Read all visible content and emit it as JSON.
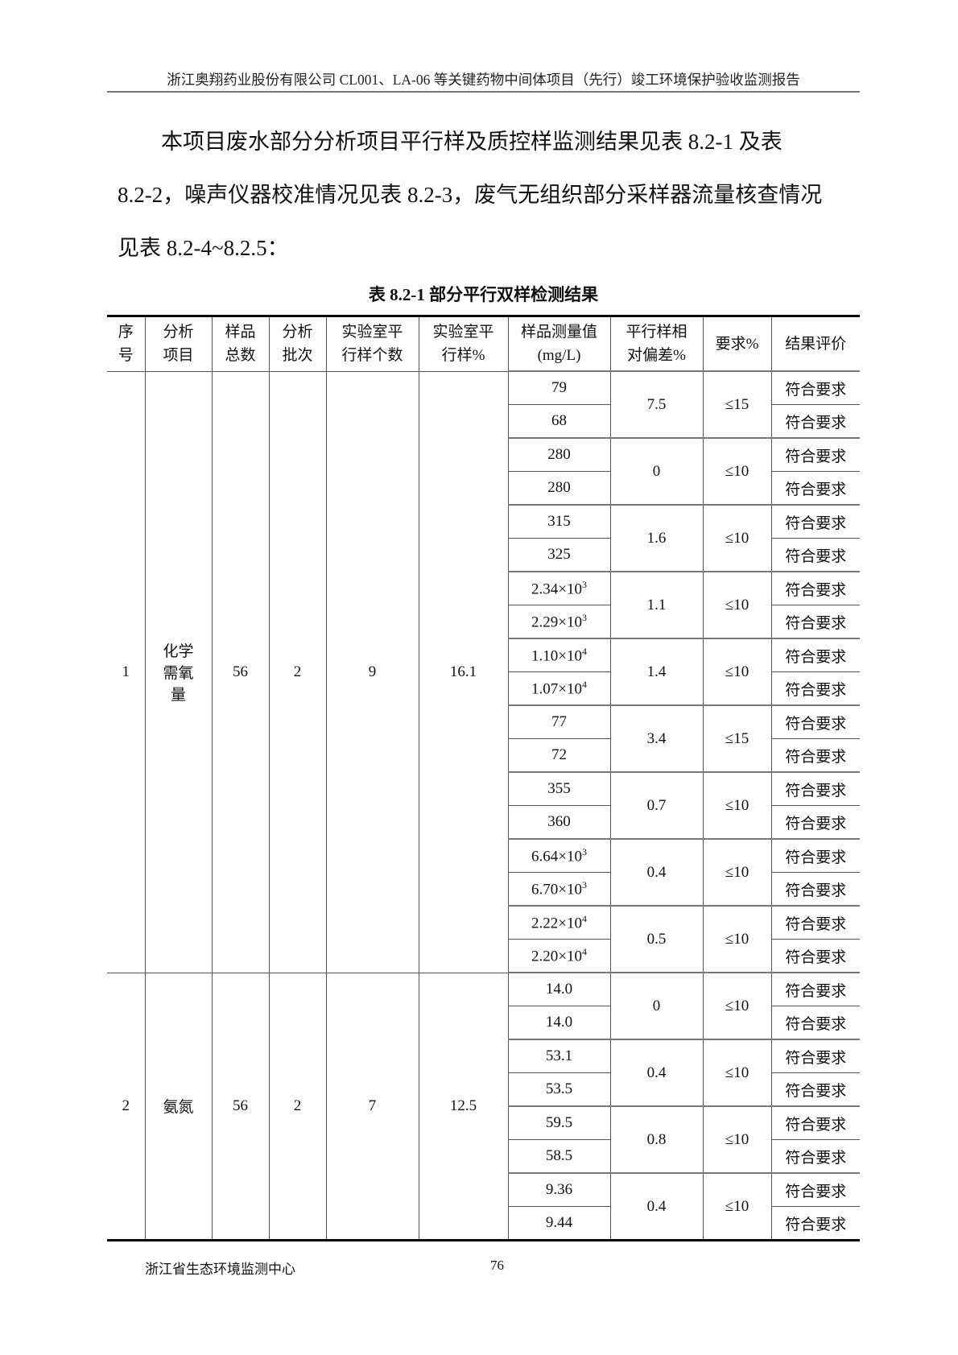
{
  "header": {
    "title": "浙江奥翔药业股份有限公司 CL001、LA-06 等关键药物中间体项目（先行）竣工环境保护验收监测报告"
  },
  "body": {
    "line1": "本项目废水部分分析项目平行样及质控样监测结果见表 8.2-1 及表",
    "line2": "8.2-2，噪声仪器校准情况见表 8.2-3，废气无组织部分采样器流量核查情况",
    "line3": "见表 8.2-4~8.2.5："
  },
  "table": {
    "caption": "表 8.2-1  部分平行双样检测结果",
    "headers": [
      "序\n号",
      "分析\n项目",
      "样品\n总数",
      "分析\n批次",
      "实验室平\n行样个数",
      "实验室平\n行样%",
      "样品测量值\n(mg/L)",
      "平行样相\n对偏差%",
      "要求%",
      "结果评价"
    ],
    "items": [
      {
        "no": "1",
        "name": "化学\n需氧\n量",
        "total": "56",
        "batch": "2",
        "count": "9",
        "pct": "16.1",
        "pairs": [
          {
            "values": [
              {
                "v": "79"
              },
              {
                "v": "68"
              }
            ],
            "dev": "7.5",
            "req": "≤15",
            "eval": [
              "符合要求",
              "符合要求"
            ]
          },
          {
            "values": [
              {
                "v": "280"
              },
              {
                "v": "280"
              }
            ],
            "dev": "0",
            "req": "≤10",
            "eval": [
              "符合要求",
              "符合要求"
            ]
          },
          {
            "values": [
              {
                "v": "315"
              },
              {
                "v": "325"
              }
            ],
            "dev": "1.6",
            "req": "≤10",
            "eval": [
              "符合要求",
              "符合要求"
            ]
          },
          {
            "values": [
              {
                "v": "2.34×10",
                "exp": "3"
              },
              {
                "v": "2.29×10",
                "exp": "3"
              }
            ],
            "dev": "1.1",
            "req": "≤10",
            "eval": [
              "符合要求",
              "符合要求"
            ]
          },
          {
            "values": [
              {
                "v": "1.10×10",
                "exp": "4"
              },
              {
                "v": "1.07×10",
                "exp": "4"
              }
            ],
            "dev": "1.4",
            "req": "≤10",
            "eval": [
              "符合要求",
              "符合要求"
            ]
          },
          {
            "values": [
              {
                "v": "77"
              },
              {
                "v": "72"
              }
            ],
            "dev": "3.4",
            "req": "≤15",
            "eval": [
              "符合要求",
              "符合要求"
            ]
          },
          {
            "values": [
              {
                "v": "355"
              },
              {
                "v": "360"
              }
            ],
            "dev": "0.7",
            "req": "≤10",
            "eval": [
              "符合要求",
              "符合要求"
            ]
          },
          {
            "values": [
              {
                "v": "6.64×10",
                "exp": "3"
              },
              {
                "v": "6.70×10",
                "exp": "3"
              }
            ],
            "dev": "0.4",
            "req": "≤10",
            "eval": [
              "符合要求",
              "符合要求"
            ]
          },
          {
            "values": [
              {
                "v": "2.22×10",
                "exp": "4"
              },
              {
                "v": "2.20×10",
                "exp": "4"
              }
            ],
            "dev": "0.5",
            "req": "≤10",
            "eval": [
              "符合要求",
              "符合要求"
            ]
          }
        ]
      },
      {
        "no": "2",
        "name": "氨氮",
        "total": "56",
        "batch": "2",
        "count": "7",
        "pct": "12.5",
        "pairs": [
          {
            "values": [
              {
                "v": "14.0"
              },
              {
                "v": "14.0"
              }
            ],
            "dev": "0",
            "req": "≤10",
            "eval": [
              "符合要求",
              "符合要求"
            ]
          },
          {
            "values": [
              {
                "v": "53.1"
              },
              {
                "v": "53.5"
              }
            ],
            "dev": "0.4",
            "req": "≤10",
            "eval": [
              "符合要求",
              "符合要求"
            ]
          },
          {
            "values": [
              {
                "v": "59.5"
              },
              {
                "v": "58.5"
              }
            ],
            "dev": "0.8",
            "req": "≤10",
            "eval": [
              "符合要求",
              "符合要求"
            ]
          },
          {
            "values": [
              {
                "v": "9.36"
              },
              {
                "v": "9.44"
              }
            ],
            "dev": "0.4",
            "req": "≤10",
            "eval": [
              "符合要求",
              "符合要求"
            ]
          }
        ]
      }
    ]
  },
  "footer": {
    "org": "浙江省生态环境监测中心",
    "page": "76"
  }
}
